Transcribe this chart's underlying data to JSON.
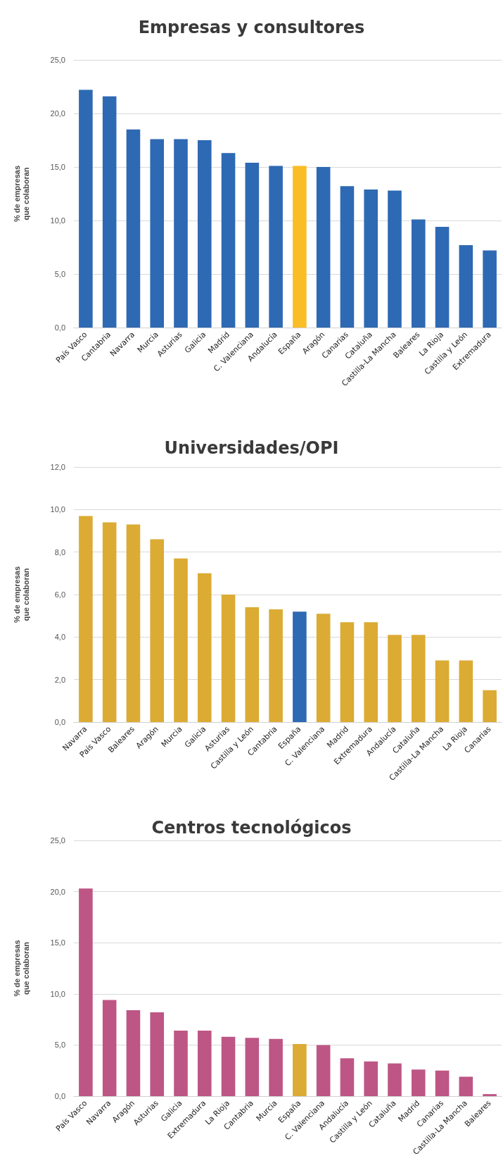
{
  "chart_data": [
    {
      "type": "bar",
      "title": "Empresas y consultores",
      "ylabel": "% de empresas\nque colaboran",
      "categories": [
        "País Vasco",
        "Cantabria",
        "Navarra",
        "Murcia",
        "Asturias",
        "Galicia",
        "Madrid",
        "C. Valenciana",
        "Andalucía",
        "España",
        "Aragón",
        "Canarias",
        "Cataluña",
        "Castilla-La Mancha",
        "Baleares",
        "La Rioja",
        "Castilla y León",
        "Extremadura"
      ],
      "values": [
        22.2,
        21.6,
        18.5,
        17.6,
        17.6,
        17.5,
        16.3,
        15.4,
        15.1,
        15.1,
        15.0,
        13.2,
        12.9,
        12.8,
        10.1,
        9.4,
        7.7,
        7.2
      ],
      "colors": [
        "#2e69b3",
        "#2e69b3",
        "#2e69b3",
        "#2e69b3",
        "#2e69b3",
        "#2e69b3",
        "#2e69b3",
        "#2e69b3",
        "#2e69b3",
        "#fbbd26",
        "#2e69b3",
        "#2e69b3",
        "#2e69b3",
        "#2e69b3",
        "#2e69b3",
        "#2e69b3",
        "#2e69b3",
        "#2e69b3"
      ],
      "ylim": [
        0,
        25
      ],
      "yticks": [
        {
          "value": 0,
          "label": "0,0"
        },
        {
          "value": 5,
          "label": "5,0"
        },
        {
          "value": 10,
          "label": "10,0"
        },
        {
          "value": 15,
          "label": "15,0"
        },
        {
          "value": 20,
          "label": "20,0"
        },
        {
          "value": 25,
          "label": "25,0"
        }
      ],
      "grid": "y"
    },
    {
      "type": "bar",
      "title": "Universidades/OPI",
      "ylabel": "% de empresas\nque colaboran",
      "categories": [
        "Navarra",
        "País Vasco",
        "Baleares",
        "Aragón",
        "Murcia",
        "Galicia",
        "Asturias",
        "Castilla y León",
        "Cantabria",
        "España",
        "C. Valenciana",
        "Madrid",
        "Extremadura",
        "Andalucía",
        "Cataluña",
        "Castilla-La Mancha",
        "La Rioja",
        "Canarias"
      ],
      "values": [
        9.7,
        9.4,
        9.3,
        8.6,
        7.7,
        7.0,
        6.0,
        5.4,
        5.3,
        5.2,
        5.1,
        4.7,
        4.7,
        4.1,
        4.1,
        2.9,
        2.9,
        1.5
      ],
      "colors": [
        "#dbab33",
        "#dbab33",
        "#dbab33",
        "#dbab33",
        "#dbab33",
        "#dbab33",
        "#dbab33",
        "#dbab33",
        "#dbab33",
        "#2e69b3",
        "#dbab33",
        "#dbab33",
        "#dbab33",
        "#dbab33",
        "#dbab33",
        "#dbab33",
        "#dbab33",
        "#dbab33"
      ],
      "ylim": [
        0,
        12
      ],
      "yticks": [
        {
          "value": 0,
          "label": "0,0"
        },
        {
          "value": 2,
          "label": "2,0"
        },
        {
          "value": 4,
          "label": "4,0"
        },
        {
          "value": 6,
          "label": "6,0"
        },
        {
          "value": 8,
          "label": "8,0"
        },
        {
          "value": 10,
          "label": "10,0"
        },
        {
          "value": 12,
          "label": "12,0"
        }
      ],
      "grid": "y"
    },
    {
      "type": "bar",
      "title": "Centros tecnológicos",
      "ylabel": "% de empresas\nque colaboran",
      "categories": [
        "País Vasco",
        "Navarra",
        "Aragón",
        "Asturias",
        "Galicia",
        "Extremadura",
        "La Rioja",
        "Cantabria",
        "Murcia",
        "España",
        "C. Valenciana",
        "Andalucía",
        "Castilla y León",
        "Cataluña",
        "Madrid",
        "Canarias",
        "Castilla-La Mancha",
        "Baleares"
      ],
      "values": [
        20.3,
        9.4,
        8.4,
        8.2,
        6.4,
        6.4,
        5.8,
        5.7,
        5.6,
        5.1,
        5.0,
        3.7,
        3.4,
        3.2,
        2.6,
        2.5,
        1.9,
        0.2
      ],
      "colors": [
        "#bd5685",
        "#bd5685",
        "#bd5685",
        "#bd5685",
        "#bd5685",
        "#bd5685",
        "#bd5685",
        "#bd5685",
        "#bd5685",
        "#dbab33",
        "#bd5685",
        "#bd5685",
        "#bd5685",
        "#bd5685",
        "#bd5685",
        "#bd5685",
        "#bd5685",
        "#bd5685"
      ],
      "ylim": [
        0,
        25
      ],
      "yticks": [
        {
          "value": 0,
          "label": "0,0"
        },
        {
          "value": 5,
          "label": "5,0"
        },
        {
          "value": 10,
          "label": "10,0"
        },
        {
          "value": 15,
          "label": "15,0"
        },
        {
          "value": 20,
          "label": "20,0"
        },
        {
          "value": 25,
          "label": "25,0"
        }
      ],
      "grid": "y"
    }
  ]
}
